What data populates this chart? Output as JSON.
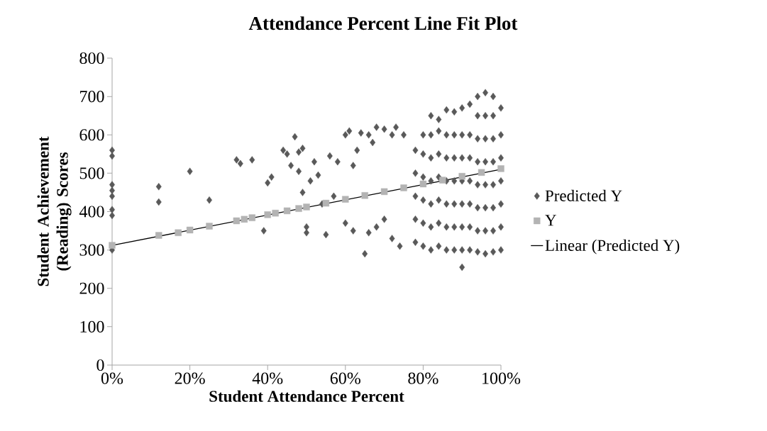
{
  "chart_data": {
    "type": "scatter",
    "title": "Attendance Percent Line Fit Plot",
    "xlabel": "Student Attendance Percent",
    "ylabel": "Student Achievement (Reading) Scores",
    "xlim": [
      0,
      1
    ],
    "ylim": [
      0,
      800
    ],
    "xticks": [
      {
        "value": 0,
        "label": "0%"
      },
      {
        "value": 0.2,
        "label": "20%"
      },
      {
        "value": 0.4,
        "label": "40%"
      },
      {
        "value": 0.6,
        "label": "60%"
      },
      {
        "value": 0.8,
        "label": "80%"
      },
      {
        "value": 1,
        "label": "100%"
      }
    ],
    "yticks": [
      0,
      100,
      200,
      300,
      400,
      500,
      600,
      700,
      800
    ],
    "grid": false,
    "legend": "right",
    "series": [
      {
        "name": "Predicted Y",
        "marker": "diamond",
        "color": "#595959",
        "x": [
          0,
          0,
          0,
          0,
          0,
          0,
          0,
          0,
          0.12,
          0.12,
          0.2,
          0.25,
          0.32,
          0.33,
          0.36,
          0.39,
          0.4,
          0.41,
          0.44,
          0.45,
          0.46,
          0.47,
          0.48,
          0.48,
          0.49,
          0.49,
          0.5,
          0.5,
          0.51,
          0.52,
          0.53,
          0.54,
          0.55,
          0.56,
          0.57,
          0.58,
          0.6,
          0.61,
          0.62,
          0.63,
          0.64,
          0.65,
          0.66,
          0.67,
          0.68,
          0.7,
          0.72,
          0.73,
          0.74,
          0.75,
          0.6,
          0.62,
          0.66,
          0.68,
          0.7,
          0.72,
          0.78,
          0.78,
          0.78,
          0.78,
          0.78,
          0.8,
          0.8,
          0.8,
          0.8,
          0.8,
          0.8,
          0.82,
          0.82,
          0.82,
          0.82,
          0.82,
          0.82,
          0.82,
          0.84,
          0.84,
          0.84,
          0.84,
          0.84,
          0.84,
          0.84,
          0.86,
          0.86,
          0.86,
          0.86,
          0.86,
          0.86,
          0.86,
          0.88,
          0.88,
          0.88,
          0.88,
          0.88,
          0.88,
          0.88,
          0.9,
          0.9,
          0.9,
          0.9,
          0.9,
          0.9,
          0.9,
          0.9,
          0.92,
          0.92,
          0.92,
          0.92,
          0.92,
          0.92,
          0.92,
          0.94,
          0.94,
          0.94,
          0.94,
          0.94,
          0.94,
          0.94,
          0.94,
          0.96,
          0.96,
          0.96,
          0.96,
          0.96,
          0.96,
          0.96,
          0.96,
          0.98,
          0.98,
          0.98,
          0.98,
          0.98,
          0.98,
          0.98,
          0.98,
          1,
          1,
          1,
          1,
          1,
          1,
          1
        ],
        "values": [
          560,
          545,
          470,
          455,
          440,
          405,
          390,
          300,
          465,
          425,
          505,
          430,
          535,
          525,
          535,
          350,
          475,
          490,
          560,
          550,
          520,
          595,
          555,
          505,
          565,
          450,
          360,
          345,
          480,
          530,
          495,
          420,
          340,
          545,
          440,
          530,
          600,
          610,
          520,
          560,
          605,
          290,
          600,
          580,
          620,
          615,
          600,
          620,
          310,
          600,
          370,
          350,
          345,
          360,
          380,
          330,
          320,
          380,
          440,
          500,
          560,
          310,
          370,
          430,
          490,
          550,
          600,
          300,
          360,
          420,
          480,
          540,
          600,
          650,
          310,
          370,
          430,
          490,
          550,
          610,
          640,
          300,
          360,
          420,
          480,
          540,
          600,
          665,
          300,
          360,
          420,
          480,
          540,
          600,
          660,
          255,
          300,
          360,
          420,
          480,
          540,
          600,
          670,
          300,
          360,
          420,
          480,
          540,
          600,
          680,
          295,
          350,
          410,
          470,
          530,
          590,
          650,
          700,
          290,
          350,
          410,
          470,
          530,
          590,
          650,
          710,
          295,
          350,
          410,
          470,
          530,
          590,
          650,
          700,
          300,
          360,
          420,
          480,
          540,
          600,
          670
        ]
      },
      {
        "name": "Y",
        "marker": "square",
        "color": "#b3b3b3",
        "x": [
          0,
          0.12,
          0.17,
          0.2,
          0.25,
          0.32,
          0.34,
          0.36,
          0.4,
          0.42,
          0.45,
          0.48,
          0.5,
          0.55,
          0.6,
          0.65,
          0.7,
          0.75,
          0.8,
          0.85,
          0.9,
          0.95,
          1
        ],
        "values": [
          312,
          338,
          345,
          352,
          362,
          376,
          380,
          384,
          392,
          396,
          402,
          408,
          412,
          422,
          432,
          442,
          452,
          462,
          472,
          482,
          492,
          502,
          512
        ]
      },
      {
        "name": "Linear (Predicted Y)",
        "type": "line",
        "marker": "none",
        "line_style": "solid",
        "color": "#000000",
        "x": [
          0,
          1
        ],
        "values": [
          312,
          510
        ]
      }
    ]
  }
}
